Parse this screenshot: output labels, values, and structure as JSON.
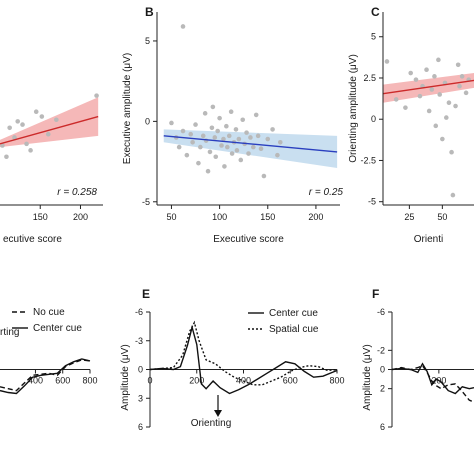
{
  "panels": [
    {
      "id": "A",
      "letter": "",
      "type": "scatter",
      "plot": [
        0,
        0,
        103,
        205
      ],
      "xlim": [
        100,
        228
      ],
      "ylim": [
        -5.2,
        6.8
      ],
      "xticks": [
        150,
        200
      ],
      "yticks": [],
      "xlabel": "ecutive score",
      "ylabel": "",
      "points": [
        [
          103,
          -1.5
        ],
        [
          108,
          -2.2
        ],
        [
          112,
          -0.4
        ],
        [
          118,
          -1.0
        ],
        [
          122,
          0.0
        ],
        [
          128,
          -0.2
        ],
        [
          133,
          -1.4
        ],
        [
          138,
          -1.8
        ],
        [
          145,
          0.6
        ],
        [
          152,
          0.3
        ],
        [
          160,
          -0.8
        ],
        [
          170,
          0.1
        ],
        [
          220,
          1.6
        ]
      ],
      "trend": {
        "x": [
          100,
          222
        ],
        "y": [
          -1.4,
          0.3
        ],
        "ci_lo": [
          -1.6,
          -0.9
        ],
        "ci_hi": [
          -1.15,
          1.5
        ],
        "color": "#cc2a2a",
        "band": "#f5b8b8"
      },
      "annotation": "r = 0.258"
    },
    {
      "id": "B",
      "letter": "B",
      "type": "scatter",
      "plot": [
        157,
        0,
        340,
        205
      ],
      "xlim": [
        35,
        225
      ],
      "ylim": [
        -5.2,
        6.8
      ],
      "xticks": [
        50,
        100,
        150,
        200
      ],
      "yticks": [
        5,
        0,
        -5
      ],
      "xlabel": "Executive score",
      "ylabel": "Executive amplitude (μV)",
      "points": [
        [
          62,
          5.9
        ],
        [
          50,
          -0.1
        ],
        [
          55,
          -1.0
        ],
        [
          58,
          -1.6
        ],
        [
          62,
          -0.6
        ],
        [
          66,
          -2.1
        ],
        [
          70,
          -0.8
        ],
        [
          72,
          -1.3
        ],
        [
          75,
          -0.2
        ],
        [
          78,
          -2.6
        ],
        [
          80,
          -1.6
        ],
        [
          83,
          -0.9
        ],
        [
          85,
          0.5
        ],
        [
          86,
          -1.2
        ],
        [
          88,
          -3.1
        ],
        [
          90,
          -1.9
        ],
        [
          92,
          -0.4
        ],
        [
          93,
          0.9
        ],
        [
          95,
          -1.0
        ],
        [
          96,
          -2.2
        ],
        [
          98,
          -0.6
        ],
        [
          100,
          0.2
        ],
        [
          102,
          -1.5
        ],
        [
          104,
          -1.1
        ],
        [
          105,
          -2.8
        ],
        [
          107,
          -0.3
        ],
        [
          108,
          -1.6
        ],
        [
          110,
          -0.9
        ],
        [
          112,
          0.6
        ],
        [
          113,
          -2.0
        ],
        [
          115,
          -1.3
        ],
        [
          117,
          -0.5
        ],
        [
          118,
          -1.8
        ],
        [
          120,
          -1.1
        ],
        [
          122,
          -2.4
        ],
        [
          124,
          0.1
        ],
        [
          126,
          -1.4
        ],
        [
          128,
          -0.7
        ],
        [
          130,
          -2.0
        ],
        [
          132,
          -1.0
        ],
        [
          135,
          -1.6
        ],
        [
          138,
          0.4
        ],
        [
          140,
          -0.9
        ],
        [
          143,
          -1.7
        ],
        [
          146,
          -3.4
        ],
        [
          150,
          -1.1
        ],
        [
          155,
          -0.5
        ],
        [
          160,
          -2.1
        ],
        [
          163,
          -1.3
        ]
      ],
      "trend": {
        "x": [
          42,
          222
        ],
        "y": [
          -0.9,
          -1.9
        ],
        "ci_lo": [
          -1.3,
          -2.9
        ],
        "ci_hi": [
          -0.5,
          -0.9
        ],
        "color": "#2a3fbf",
        "band": "#c9dff0"
      },
      "annotation": "r = 0.25"
    },
    {
      "id": "C",
      "letter": "C",
      "type": "scatter",
      "plot": [
        383,
        0,
        474,
        205
      ],
      "xlim": [
        5,
        74
      ],
      "ylim": [
        -5.2,
        6.5
      ],
      "xticks": [
        25,
        50
      ],
      "yticks": [
        5,
        2.5,
        0,
        -2.5,
        -5
      ],
      "xlabel": "Orienti",
      "ylabel": "Orienting amplitude (μV)",
      "points": [
        [
          8,
          3.5
        ],
        [
          15,
          1.2
        ],
        [
          22,
          0.7
        ],
        [
          26,
          2.8
        ],
        [
          30,
          2.4
        ],
        [
          33,
          1.4
        ],
        [
          35,
          2.0
        ],
        [
          38,
          3.0
        ],
        [
          40,
          0.5
        ],
        [
          42,
          1.8
        ],
        [
          44,
          2.6
        ],
        [
          45,
          -0.4
        ],
        [
          47,
          3.6
        ],
        [
          48,
          1.5
        ],
        [
          50,
          -1.2
        ],
        [
          52,
          2.2
        ],
        [
          53,
          0.1
        ],
        [
          55,
          1.0
        ],
        [
          57,
          -2.0
        ],
        [
          58,
          -4.6
        ],
        [
          60,
          0.8
        ],
        [
          62,
          3.3
        ],
        [
          63,
          2.0
        ],
        [
          65,
          2.6
        ],
        [
          68,
          1.6
        ],
        [
          70,
          2.4
        ]
      ],
      "trend": {
        "x": [
          5,
          74
        ],
        "y": [
          1.55,
          2.35
        ],
        "ci_lo": [
          1.0,
          1.9
        ],
        "ci_hi": [
          2.1,
          2.8
        ],
        "color": "#cc2a2a",
        "band": "#f5b8b8"
      },
      "annotation": ""
    }
  ],
  "waves": [
    {
      "id": "D",
      "letter": "",
      "plot": [
        0,
        0,
        90,
        95
      ],
      "xlim": [
        140,
        800
      ],
      "ylim": [
        -6,
        6
      ],
      "xticks": [
        400,
        600,
        800
      ],
      "yticks": [],
      "xlabel": "",
      "ylabel": "",
      "series": [
        {
          "name": "No cue",
          "dash": "5,3",
          "x": [
            140,
            200,
            260,
            320,
            380,
            440,
            500,
            560,
            620,
            680,
            740,
            800
          ],
          "y": [
            1.8,
            2.0,
            2.2,
            1.4,
            0.6,
            0.5,
            0.4,
            0.6,
            -0.3,
            -0.7,
            -1.0,
            -0.9
          ]
        },
        {
          "name": "Center cue",
          "dash": "",
          "x": [
            140,
            200,
            260,
            320,
            380,
            440,
            500,
            560,
            620,
            680,
            740,
            800
          ],
          "y": [
            2.2,
            2.4,
            2.5,
            1.7,
            0.8,
            0.6,
            0.5,
            0.4,
            -0.4,
            -0.8,
            -1.1,
            -0.9
          ]
        }
      ],
      "annotation": "rting"
    },
    {
      "id": "E",
      "letter": "E",
      "plot": [
        150,
        0,
        337,
        95
      ],
      "xlim": [
        0,
        800
      ],
      "ylim": [
        -6,
        6
      ],
      "xticks": [
        0,
        200,
        400,
        600,
        800
      ],
      "yticks": [
        -6,
        -3,
        0,
        3,
        6
      ],
      "xlabel": "",
      "ylabel": "Amplitude (μV)",
      "series": [
        {
          "name": "Center cue",
          "dash": "",
          "x": [
            0,
            50,
            100,
            130,
            160,
            180,
            200,
            220,
            240,
            270,
            300,
            340,
            380,
            420,
            460,
            500,
            540,
            580,
            620,
            660,
            700,
            740,
            780,
            800
          ],
          "y": [
            0,
            -0.1,
            0,
            -0.3,
            -2.5,
            -4.4,
            -2.6,
            1.5,
            2.0,
            1.2,
            1.9,
            2.5,
            2.1,
            1.6,
            1.0,
            0.4,
            -0.2,
            -0.8,
            -0.6,
            0.2,
            0.8,
            0.7,
            0.3,
            0.1
          ]
        },
        {
          "name": "Spatial cue",
          "dash": "2,2",
          "x": [
            0,
            50,
            100,
            140,
            170,
            190,
            210,
            240,
            280,
            320,
            360,
            400,
            440,
            480,
            520,
            560,
            600,
            640,
            680,
            720,
            760,
            800
          ],
          "y": [
            0,
            -0.1,
            -0.2,
            -1.5,
            -4.0,
            -4.9,
            -3.0,
            -1.0,
            -0.6,
            0.2,
            0.8,
            1.2,
            1.6,
            1.6,
            1.2,
            0.8,
            0.2,
            -0.2,
            -0.4,
            -0.3,
            0.1,
            0
          ]
        }
      ],
      "annotation": "Orienting"
    },
    {
      "id": "F",
      "letter": "F",
      "plot": [
        392,
        0,
        474,
        95
      ],
      "xlim": [
        0,
        350
      ],
      "ylim": [
        -6,
        6
      ],
      "xticks": [
        200
      ],
      "yticks": [
        -6,
        -2,
        0,
        2,
        6
      ],
      "xlabel": "",
      "ylabel": "Amplitude (μV)",
      "series": [
        {
          "name": "",
          "dash": "",
          "x": [
            0,
            40,
            80,
            110,
            130,
            150,
            170,
            190,
            210,
            240,
            270,
            300,
            330,
            350
          ],
          "y": [
            0,
            -0.1,
            0,
            0.3,
            -0.6,
            0.2,
            1.6,
            1.0,
            1.3,
            2.2,
            2.5,
            1.8,
            2.0,
            1.9
          ]
        },
        {
          "name": "",
          "dash": "5,3",
          "x": [
            0,
            40,
            80,
            110,
            130,
            150,
            170,
            190,
            210,
            240,
            270,
            300,
            330,
            350
          ],
          "y": [
            0,
            -0.2,
            0,
            -0.2,
            -0.4,
            0.3,
            1.2,
            1.7,
            2.0,
            1.6,
            1.5,
            2.3,
            3.2,
            3.4
          ]
        }
      ],
      "annotation": ""
    }
  ],
  "chart_data": [
    {
      "type": "scatter",
      "title": "",
      "xlabel": "ecutive score",
      "ylabel": "",
      "annotation": "r = 0.258"
    },
    {
      "type": "scatter",
      "title": "",
      "xlabel": "Executive score",
      "ylabel": "Executive amplitude (μV)",
      "xlim": [
        35,
        225
      ],
      "ylim": [
        -5.2,
        6.8
      ],
      "annotation": "r = 0.25"
    },
    {
      "type": "scatter",
      "title": "",
      "xlabel": "Orienti",
      "ylabel": "Orienting amplitude (μV)",
      "xlim": [
        5,
        74
      ],
      "ylim": [
        -5.2,
        6.5
      ]
    },
    {
      "type": "line",
      "title": "",
      "legend": [
        "No cue",
        "Center cue"
      ],
      "xlim": [
        140,
        800
      ],
      "annotation": "rting"
    },
    {
      "type": "line",
      "title": "",
      "legend": [
        "Center cue",
        "Spatial cue"
      ],
      "ylabel": "Amplitude (μV)",
      "xlim": [
        0,
        800
      ],
      "ylim": [
        -6,
        6
      ],
      "annotation": "Orienting"
    },
    {
      "type": "line",
      "title": "",
      "ylabel": "Amplitude (μV)",
      "xlim": [
        0,
        350
      ],
      "ylim": [
        -6,
        6
      ]
    }
  ]
}
